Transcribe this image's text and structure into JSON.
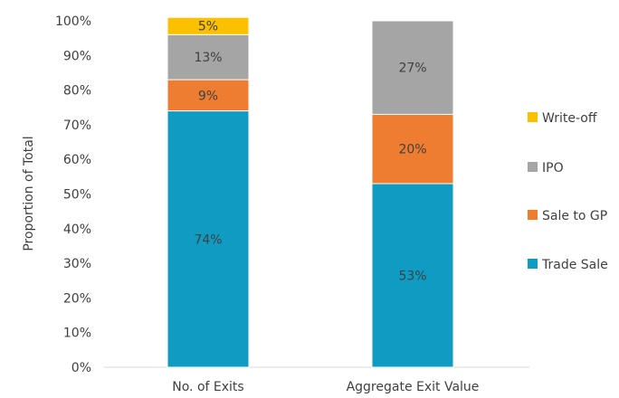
{
  "chart_data": {
    "type": "bar",
    "stacked": true,
    "categories": [
      "No. of Exits",
      "Aggregate Exit Value"
    ],
    "series": [
      {
        "name": "Trade Sale",
        "values": [
          74,
          53
        ],
        "labels": [
          "74%",
          "53%"
        ],
        "color": "#0f9bc2"
      },
      {
        "name": "Sale to GP",
        "values": [
          9,
          20
        ],
        "labels": [
          "9%",
          "20%"
        ],
        "color": "#ee7d31"
      },
      {
        "name": "IPO",
        "values": [
          13,
          27
        ],
        "labels": [
          "13%",
          "27%"
        ],
        "color": "#a5a5a5"
      },
      {
        "name": "Write-off",
        "values": [
          5,
          0
        ],
        "labels": [
          "5%",
          ""
        ],
        "color": "#fbc100"
      }
    ],
    "legend_order": [
      "Write-off",
      "IPO",
      "Sale to GP",
      "Trade Sale"
    ],
    "legend_position": "right",
    "ylabel": "Proportion of Total",
    "yticks": [
      "0%",
      "10%",
      "20%",
      "30%",
      "40%",
      "50%",
      "60%",
      "70%",
      "80%",
      "90%",
      "100%"
    ],
    "ylim": [
      0,
      100
    ],
    "grid": false
  }
}
